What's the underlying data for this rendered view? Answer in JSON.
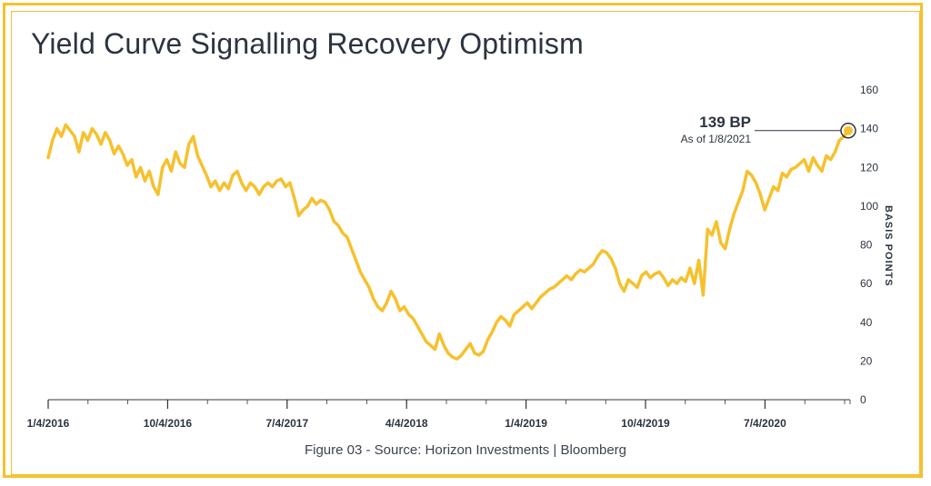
{
  "chart_data": {
    "type": "line",
    "title": "Yield Curve Signalling Recovery Optimism",
    "caption": "Figure 03 - Source: Horizon Investments | Bloomberg",
    "ylabel": "BASIS POINTS",
    "xlabel": "",
    "ylim": [
      0,
      160
    ],
    "y_ticks": [
      0,
      20,
      40,
      60,
      80,
      100,
      120,
      140,
      160
    ],
    "y_axis_side": "right",
    "x_tick_labels": [
      "1/4/2016",
      "10/4/2016",
      "7/4/2017",
      "4/4/2018",
      "1/4/2019",
      "10/4/2019",
      "7/4/2020"
    ],
    "grid": false,
    "legend": "none",
    "line_color": "#f5c12e",
    "annotation": {
      "value_label": "139 BP",
      "date_label": "As of 1/8/2021",
      "y": 139
    },
    "series": [
      {
        "values": [
          125,
          134,
          140,
          136,
          142,
          139,
          136,
          128,
          138,
          134,
          140,
          137,
          132,
          138,
          134,
          127,
          131,
          127,
          121,
          124,
          115,
          120,
          113,
          118,
          110,
          106,
          120,
          124,
          118,
          128,
          122,
          120,
          132,
          136,
          126,
          121,
          116,
          110,
          113,
          108,
          112,
          109,
          116,
          118,
          112,
          108,
          112,
          110,
          106,
          110,
          112,
          110,
          113,
          114,
          110,
          112,
          104,
          95,
          98,
          100,
          104,
          101,
          103,
          102,
          98,
          92,
          90,
          86,
          84,
          78,
          72,
          66,
          62,
          58,
          52,
          48,
          46,
          50,
          56,
          52,
          46,
          48,
          44,
          42,
          38,
          34,
          30,
          28,
          26,
          34,
          28,
          24,
          22,
          21,
          23,
          26,
          29,
          24,
          23,
          25,
          31,
          35,
          40,
          43,
          41,
          38,
          44,
          46,
          48,
          50,
          47,
          50,
          53,
          55,
          57,
          58,
          60,
          62,
          64,
          62,
          65,
          67,
          66,
          68,
          70,
          74,
          77,
          76,
          73,
          68,
          60,
          56,
          62,
          60,
          58,
          64,
          66,
          63,
          65,
          66,
          63,
          59,
          62,
          60,
          63,
          61,
          68,
          60,
          72,
          54,
          88,
          85,
          92,
          81,
          78,
          88,
          96,
          102,
          108,
          118,
          116,
          112,
          106,
          98,
          104,
          110,
          108,
          117,
          115,
          119,
          120,
          122,
          124,
          118,
          125,
          121,
          118,
          126,
          124,
          128,
          134,
          136,
          139
        ]
      }
    ]
  }
}
